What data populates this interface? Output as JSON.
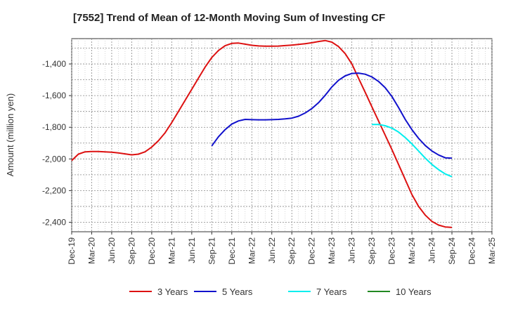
{
  "chart_data": {
    "type": "line",
    "title": "[7552]  Trend of Mean of 12-Month Moving Sum of Investing CF",
    "xlabel": "",
    "ylabel": "Amount (million yen)",
    "x_ticks": [
      "Dec-19",
      "Mar-20",
      "Jun-20",
      "Sep-20",
      "Dec-20",
      "Mar-21",
      "Jun-21",
      "Sep-21",
      "Dec-21",
      "Mar-22",
      "Jun-22",
      "Sep-22",
      "Dec-22",
      "Mar-23",
      "Jun-23",
      "Sep-23",
      "Dec-23",
      "Mar-24",
      "Jun-24",
      "Sep-24",
      "Dec-24",
      "Mar-25"
    ],
    "y_ticks": [
      -1400,
      -1600,
      -1800,
      -2000,
      -2200,
      -2400
    ],
    "y_tick_labels": [
      "-1,400",
      "-1,600",
      "-1,800",
      "-2,000",
      "-2,200",
      "-2,400"
    ],
    "ylim": [
      -2460,
      -1240
    ],
    "grid": true,
    "legend_position": "bottom",
    "series": [
      {
        "name": "3 Years",
        "color": "#dd1111",
        "x": [
          "2019-12",
          "2020-01",
          "2020-02",
          "2020-03",
          "2020-04",
          "2020-05",
          "2020-06",
          "2020-07",
          "2020-08",
          "2020-09",
          "2020-10",
          "2020-11",
          "2020-12",
          "2021-01",
          "2021-02",
          "2021-03",
          "2021-04",
          "2021-05",
          "2021-06",
          "2021-07",
          "2021-08",
          "2021-09",
          "2021-10",
          "2021-11",
          "2021-12",
          "2022-01",
          "2022-02",
          "2022-03",
          "2022-04",
          "2022-05",
          "2022-06",
          "2022-07",
          "2022-08",
          "2022-09",
          "2022-10",
          "2022-11",
          "2022-12",
          "2023-01",
          "2023-02",
          "2023-03",
          "2023-04",
          "2023-05",
          "2023-06",
          "2023-07",
          "2023-08",
          "2023-09",
          "2023-10",
          "2023-11",
          "2023-12",
          "2024-01",
          "2024-02",
          "2024-03",
          "2024-04",
          "2024-05",
          "2024-06",
          "2024-07",
          "2024-08",
          "2024-09"
        ],
        "values": [
          -2010,
          -1970,
          -1955,
          -1953,
          -1953,
          -1955,
          -1958,
          -1962,
          -1968,
          -1974,
          -1970,
          -1955,
          -1925,
          -1885,
          -1835,
          -1770,
          -1700,
          -1630,
          -1560,
          -1490,
          -1420,
          -1360,
          -1315,
          -1285,
          -1270,
          -1268,
          -1275,
          -1282,
          -1286,
          -1288,
          -1288,
          -1287,
          -1284,
          -1281,
          -1277,
          -1272,
          -1266,
          -1258,
          -1252,
          -1262,
          -1290,
          -1335,
          -1400,
          -1490,
          -1580,
          -1670,
          -1760,
          -1850,
          -1940,
          -2035,
          -2130,
          -2225,
          -2300,
          -2355,
          -2395,
          -2418,
          -2430,
          -2433
        ]
      },
      {
        "name": "5 Years",
        "color": "#1111cc",
        "x": [
          "2021-09",
          "2021-10",
          "2021-11",
          "2021-12",
          "2022-01",
          "2022-02",
          "2022-03",
          "2022-04",
          "2022-05",
          "2022-06",
          "2022-07",
          "2022-08",
          "2022-09",
          "2022-10",
          "2022-11",
          "2022-12",
          "2023-01",
          "2023-02",
          "2023-03",
          "2023-04",
          "2023-05",
          "2023-06",
          "2023-07",
          "2023-08",
          "2023-09",
          "2023-10",
          "2023-11",
          "2023-12",
          "2024-01",
          "2024-02",
          "2024-03",
          "2024-04",
          "2024-05",
          "2024-06",
          "2024-07",
          "2024-08",
          "2024-09"
        ],
        "values": [
          -1918,
          -1860,
          -1815,
          -1780,
          -1760,
          -1750,
          -1752,
          -1753,
          -1753,
          -1752,
          -1750,
          -1747,
          -1742,
          -1730,
          -1710,
          -1682,
          -1645,
          -1598,
          -1545,
          -1503,
          -1475,
          -1460,
          -1458,
          -1465,
          -1482,
          -1510,
          -1550,
          -1605,
          -1675,
          -1750,
          -1815,
          -1870,
          -1915,
          -1950,
          -1975,
          -1993,
          -1995
        ]
      },
      {
        "name": "7 Years",
        "color": "#00eeee",
        "x": [
          "2023-09",
          "2023-10",
          "2023-11",
          "2023-12",
          "2024-01",
          "2024-02",
          "2024-03",
          "2024-04",
          "2024-05",
          "2024-06",
          "2024-07",
          "2024-08",
          "2024-09"
        ],
        "values": [
          -1782,
          -1782,
          -1790,
          -1805,
          -1830,
          -1865,
          -1905,
          -1950,
          -1995,
          -2035,
          -2068,
          -2095,
          -2112
        ]
      },
      {
        "name": "10 Years",
        "color": "#228822",
        "x": [],
        "values": []
      }
    ]
  }
}
